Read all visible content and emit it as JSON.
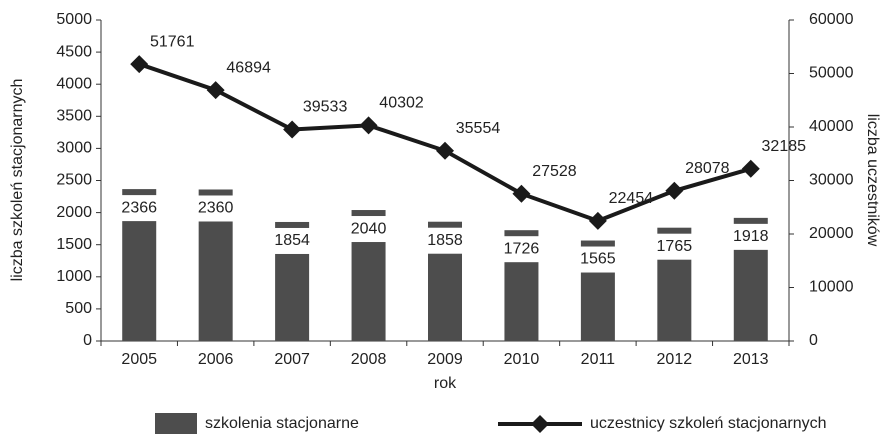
{
  "chart_data": {
    "type": "bar",
    "categories": [
      "2005",
      "2006",
      "2007",
      "2008",
      "2009",
      "2010",
      "2011",
      "2012",
      "2013"
    ],
    "series": [
      {
        "name": "szkolenia stacjonarne",
        "type": "bar",
        "color": "#4d4d4d",
        "values": [
          2366,
          2360,
          1854,
          2040,
          1858,
          1726,
          1565,
          1765,
          1918
        ]
      },
      {
        "name": "uczestnicy szkoleń stacjonarnych",
        "type": "line",
        "axis": "y2",
        "color": "#1a1a1a",
        "values": [
          51761,
          46894,
          39533,
          40302,
          35554,
          27528,
          22454,
          28078,
          32185
        ]
      }
    ],
    "ylabel": "liczba szkoleń stacjonarnych",
    "y2label": "liczba uczestników",
    "xlabel": "rok",
    "ylim": [
      0,
      5000
    ],
    "yticks": [
      0,
      500,
      1000,
      1500,
      2000,
      2500,
      3000,
      3500,
      4000,
      4500,
      5000
    ],
    "y2lim": [
      0,
      60000
    ],
    "y2ticks": [
      0,
      10000,
      20000,
      30000,
      40000,
      50000,
      60000
    ],
    "grid": false,
    "legend": "bottom"
  }
}
